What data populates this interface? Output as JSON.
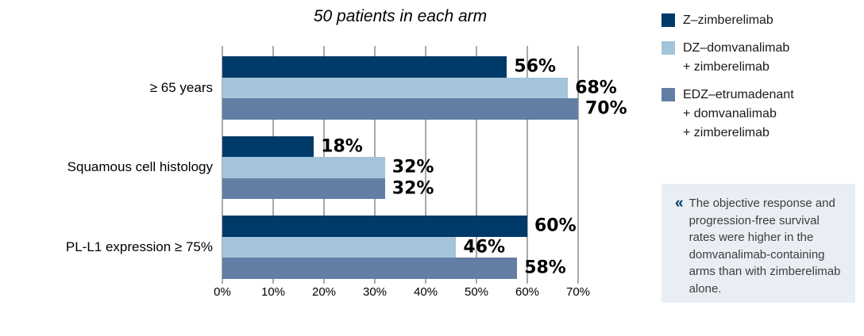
{
  "chart_data": {
    "type": "bar",
    "orientation": "horizontal",
    "title": "50 patients in each arm",
    "categories": [
      "≥ 65 years",
      "Squamous cell histology",
      "PL-L1 expression ≥ 75%"
    ],
    "series": [
      {
        "name": "Z–zimberelimab",
        "color": "#003a68",
        "values": [
          56,
          18,
          60
        ]
      },
      {
        "name": "DZ–domvanalimab + zimberelimab",
        "color": "#a3c4da",
        "values": [
          68,
          32,
          46
        ]
      },
      {
        "name": "EDZ–etrumadenant + domvanalimab + zimberelimab",
        "color": "#637ea5",
        "values": [
          70,
          32,
          58
        ]
      }
    ],
    "value_suffix": "%",
    "xlim": [
      0,
      70
    ],
    "x_ticks": [
      "0%",
      "10%",
      "20%",
      "30%",
      "40%",
      "50%",
      "60%",
      "70%"
    ],
    "grid": true,
    "legend_position": "right"
  },
  "legend": {
    "items": [
      {
        "lines": [
          "Z–zimberelimab"
        ],
        "color": "#003a68"
      },
      {
        "lines": [
          "DZ–domvanalimab",
          "+ zimberelimab"
        ],
        "color": "#a3c4da"
      },
      {
        "lines": [
          "EDZ–etrumadenant",
          "+ domvanalimab",
          "+ zimberelimab"
        ],
        "color": "#637ea5"
      }
    ]
  },
  "callout": {
    "marker": "«",
    "text": "The objective response and progression-free survival rates were higher in the domvanalimab-containing arms than with zimberelimab alone."
  },
  "colors": {
    "navy": "#003a68",
    "light_blue": "#a3c4da",
    "slate_blue": "#637ea5",
    "gridline": "#a9a9a9",
    "callout_bg": "#e8eef3",
    "callout_text": "#3d3d3d"
  }
}
